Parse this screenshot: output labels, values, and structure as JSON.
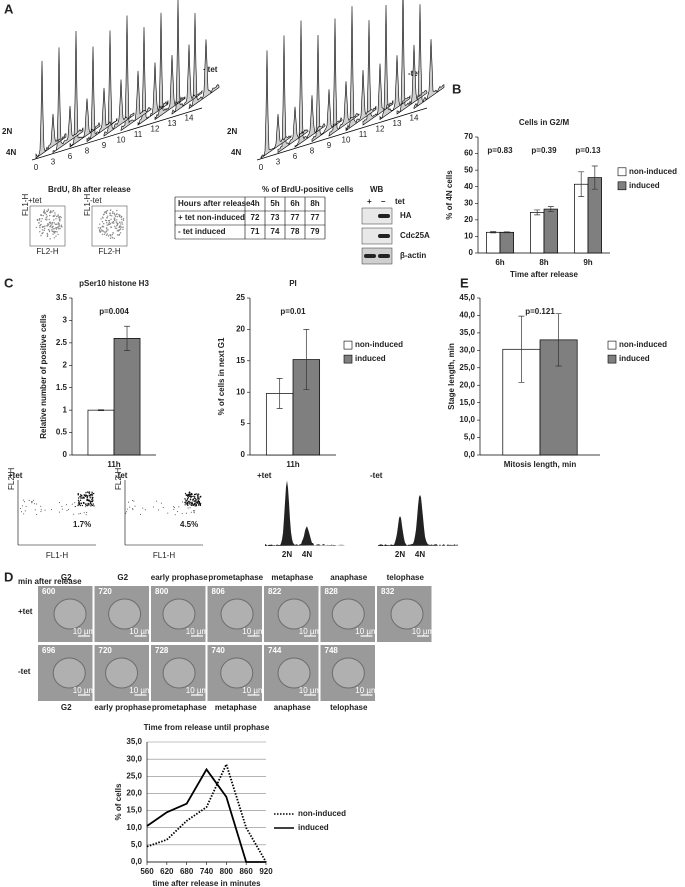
{
  "panels": [
    "A",
    "B",
    "C",
    "D",
    "E"
  ],
  "panel_a": {
    "plus": "+tet",
    "minus": "-tet",
    "n2": "2N",
    "n4": "4N",
    "axis_labels": [
      "0",
      "3",
      "6",
      "8",
      "9",
      "10",
      "11",
      "12",
      "13",
      "14"
    ],
    "brdu_caption": "BrdU, 8h after release",
    "table_caption": "% of BrdU-positive cells",
    "fl1": "FL1-H",
    "fl2": "FL2-H"
  },
  "table": {
    "header": [
      "Hours after release",
      "4h",
      "5h",
      "6h",
      "8h"
    ],
    "rows": [
      [
        "+ tet  non-induced",
        "72",
        "73",
        "77",
        "77"
      ],
      [
        "- tet  induced",
        "71",
        "74",
        "78",
        "79"
      ]
    ]
  },
  "blot": {
    "title": "WB",
    "plus": "+",
    "minus": "–",
    "tet": "tet",
    "bands": [
      "HA",
      "Cdc25A",
      "β-actin"
    ]
  },
  "chart_data": [
    {
      "type": "bar",
      "title": "Cells in G2/M",
      "categories": [
        "6h",
        "8h",
        "9h"
      ],
      "series": [
        {
          "name": "non-induced",
          "color": "#ffffff",
          "values": [
            12.5,
            24.5,
            41.5
          ],
          "errors": [
            0.4,
            1.5,
            7.5
          ]
        },
        {
          "name": "induced",
          "color": "#7f7f7f",
          "values": [
            12.5,
            26.5,
            45.5
          ],
          "errors": [
            0.3,
            1.5,
            7
          ]
        }
      ],
      "annotations": [
        "p=0.83",
        "p=0.39",
        "p=0.13"
      ],
      "ylabel": "% of 4N cells",
      "xlabel": "Time after release",
      "ylim": [
        0,
        70
      ],
      "yticks": [
        0,
        10,
        20,
        30,
        40,
        50,
        60,
        70
      ],
      "legend": "right"
    },
    {
      "type": "bar",
      "title": "pSer10 histone H3",
      "categories": [
        "11h"
      ],
      "series": [
        {
          "color": "#ffffff",
          "values": [
            1.0
          ],
          "errors": [
            0.01
          ]
        },
        {
          "color": "#7f7f7f",
          "values": [
            2.6
          ],
          "errors": [
            0.27
          ]
        }
      ],
      "annotations": [
        "p=0.004"
      ],
      "ylabel": "Relative number of positive cells",
      "ylim": [
        0,
        3.5
      ],
      "yticks": [
        0,
        0.5,
        1,
        1.5,
        2,
        2.5,
        3,
        3.5
      ]
    },
    {
      "type": "bar",
      "title": "PI",
      "categories": [
        "11h"
      ],
      "series": [
        {
          "name": "non-induced",
          "color": "#ffffff",
          "values": [
            9.8
          ],
          "errors": [
            2.4
          ]
        },
        {
          "name": "induced",
          "color": "#7f7f7f",
          "values": [
            15.2
          ],
          "errors": [
            4.8
          ]
        }
      ],
      "annotations": [
        "p=0.01"
      ],
      "ylabel": "% of cells in next G1",
      "ylim": [
        0,
        25
      ],
      "yticks": [
        0,
        5,
        10,
        15,
        20,
        25
      ],
      "legend": "right"
    },
    {
      "type": "bar",
      "categories": [
        "Mitosis length, min"
      ],
      "series": [
        {
          "name": "non-induced",
          "color": "#ffffff",
          "values": [
            30.3
          ],
          "errors": [
            9.5
          ]
        },
        {
          "name": "induced",
          "color": "#7f7f7f",
          "values": [
            33.0
          ],
          "errors": [
            7.5
          ]
        }
      ],
      "annotations": [
        "p=0.121"
      ],
      "ylabel": "Stage length, min",
      "ylim": [
        0,
        45
      ],
      "yticks": [
        {
          "value": 0,
          "label": "0,0"
        },
        {
          "value": 5,
          "label": "5,0"
        },
        {
          "value": 10,
          "label": "10,0"
        },
        {
          "value": 15,
          "label": "15,0"
        },
        {
          "value": 20,
          "label": "20,0"
        },
        {
          "value": 25,
          "label": "25,0"
        },
        {
          "value": 30,
          "label": "30,0"
        },
        {
          "value": 35,
          "label": "35,0"
        },
        {
          "value": 40,
          "label": "40,0"
        },
        {
          "value": 45,
          "label": "45,0"
        }
      ],
      "legend": "right"
    },
    {
      "type": "line",
      "title": "Time from release until prophase",
      "x": [
        560,
        620,
        680,
        740,
        800,
        860,
        920
      ],
      "series": [
        {
          "name": "non-induced",
          "color": "#000000",
          "style": "dotted",
          "values": [
            4.5,
            6.5,
            12,
            16,
            28.5,
            10,
            0
          ]
        },
        {
          "name": "induced",
          "color": "#000000",
          "style": "solid",
          "values": [
            10.5,
            14.5,
            17,
            27,
            19,
            0,
            0
          ]
        }
      ],
      "ylabel": "% of cells",
      "xlabel": "time after release in minutes",
      "xlim": [
        560,
        920
      ],
      "xticks": [
        560,
        620,
        680,
        740,
        800,
        860,
        920
      ],
      "ylim": [
        0,
        35
      ],
      "yticks": [
        {
          "value": 0,
          "label": "0,0"
        },
        {
          "value": 5,
          "label": "5,0"
        },
        {
          "value": 10,
          "label": "10,0"
        },
        {
          "value": 15,
          "label": "15,0"
        },
        {
          "value": 20,
          "label": "20,0"
        },
        {
          "value": 25,
          "label": "25,0"
        },
        {
          "value": 30,
          "label": "30,0"
        },
        {
          "value": 35,
          "label": "35,0"
        }
      ],
      "grid": true,
      "legend": "right"
    }
  ],
  "panel_c": {
    "plus": "+tet",
    "minus": "-tet",
    "pct_plus": "1.7%",
    "pct_minus": "4.5%",
    "fl1": "FL1-H",
    "fl2": "FL2-H",
    "n2": "2N",
    "n4": "4N"
  },
  "timelapse": {
    "header": "min after release",
    "row_labels": [
      "+tet",
      "-tet"
    ],
    "top_stages": [
      "G2",
      "G2",
      "early prophase",
      "prometaphase",
      "metaphase",
      "anaphase",
      "telophase"
    ],
    "top_times": [
      "600",
      "720",
      "800",
      "806",
      "822",
      "828",
      "832"
    ],
    "bottom_times": [
      "696",
      "720",
      "728",
      "740",
      "744",
      "748"
    ],
    "bottom_stages": [
      "G2",
      "early prophase",
      "prometaphase",
      "metaphase",
      "anaphase",
      "telophase"
    ],
    "scale": "10 µm"
  }
}
